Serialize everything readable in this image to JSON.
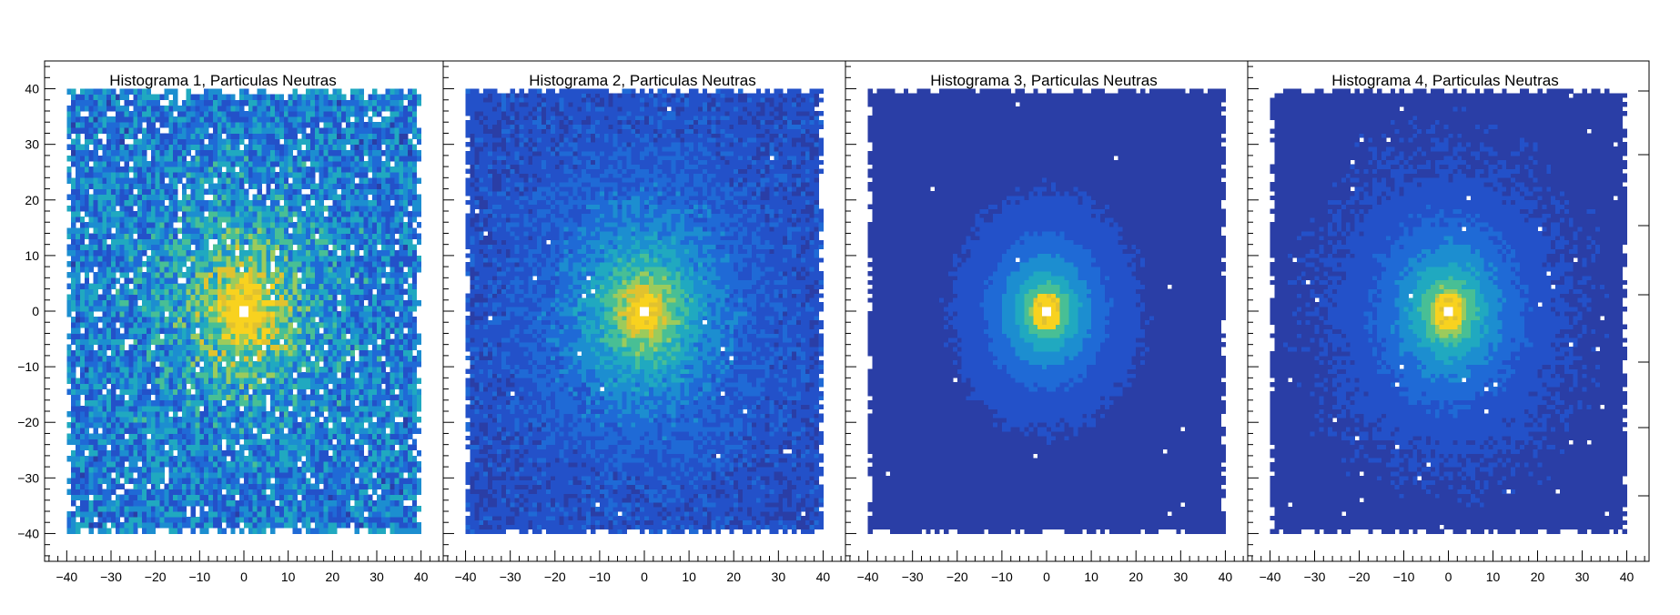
{
  "chart_data": [
    {
      "type": "heatmap",
      "title": "Histograma 1, Particulas Neutras",
      "xlim": [
        -45,
        45
      ],
      "ylim": [
        -45,
        45
      ],
      "x_ticks": [
        -40,
        -30,
        -20,
        -10,
        0,
        10,
        20,
        30,
        40
      ],
      "y_ticks": [
        -40,
        -30,
        -20,
        -10,
        0,
        10,
        20,
        30,
        40
      ],
      "bins": [
        80,
        80
      ],
      "bin_range": [
        -40,
        40
      ],
      "center": [
        0,
        0
      ],
      "background_level": 0.35,
      "peak_spread": 9,
      "hole_radius": 1.2,
      "empty_fraction": 0.06
    },
    {
      "type": "heatmap",
      "title": "Histograma 2, Particulas Neutras",
      "xlim": [
        -45,
        45
      ],
      "ylim": [
        -45,
        45
      ],
      "x_ticks": [
        -40,
        -30,
        -20,
        -10,
        0,
        10,
        20,
        30,
        40
      ],
      "y_ticks": [],
      "bins": [
        80,
        100
      ],
      "bin_range": [
        -40,
        40
      ],
      "center": [
        0,
        0
      ],
      "background_level": 0.15,
      "peak_spread": 11,
      "hole_radius": 1.0,
      "empty_fraction": 0.004
    },
    {
      "type": "heatmap",
      "title": "Histograma 3, Particulas Neutras",
      "xlim": [
        -45,
        45
      ],
      "ylim": [
        -45,
        45
      ],
      "x_ticks": [
        -40,
        -30,
        -20,
        -10,
        0,
        10,
        20,
        30,
        40
      ],
      "y_ticks": [],
      "bins": [
        80,
        100
      ],
      "bin_range": [
        -40,
        40
      ],
      "center": [
        0,
        0
      ],
      "background_level": 0.03,
      "peak_spread": 9,
      "hole_radius": 1.0,
      "empty_fraction": 0.002
    },
    {
      "type": "heatmap",
      "title": "Histograma 4, Particulas Neutras",
      "xlim": [
        -45,
        45
      ],
      "ylim": [
        -45,
        45
      ],
      "x_ticks": [
        -40,
        -30,
        -20,
        -10,
        0,
        10,
        20,
        30,
        40
      ],
      "y_ticks": [],
      "bins": [
        80,
        100
      ],
      "bin_range": [
        -40,
        40
      ],
      "center": [
        0,
        0
      ],
      "background_level": 0.06,
      "peak_spread": 10,
      "hole_radius": 1.0,
      "empty_fraction": 0.006
    }
  ],
  "colors": {
    "palette": [
      "#2a3ea6",
      "#2351c9",
      "#1f6ad6",
      "#1c8ed0",
      "#20a9c0",
      "#48bf95",
      "#9ccb5c",
      "#e1c22f",
      "#f8d21f"
    ],
    "frame": "#000000",
    "empty_bin": "#ffffff"
  }
}
